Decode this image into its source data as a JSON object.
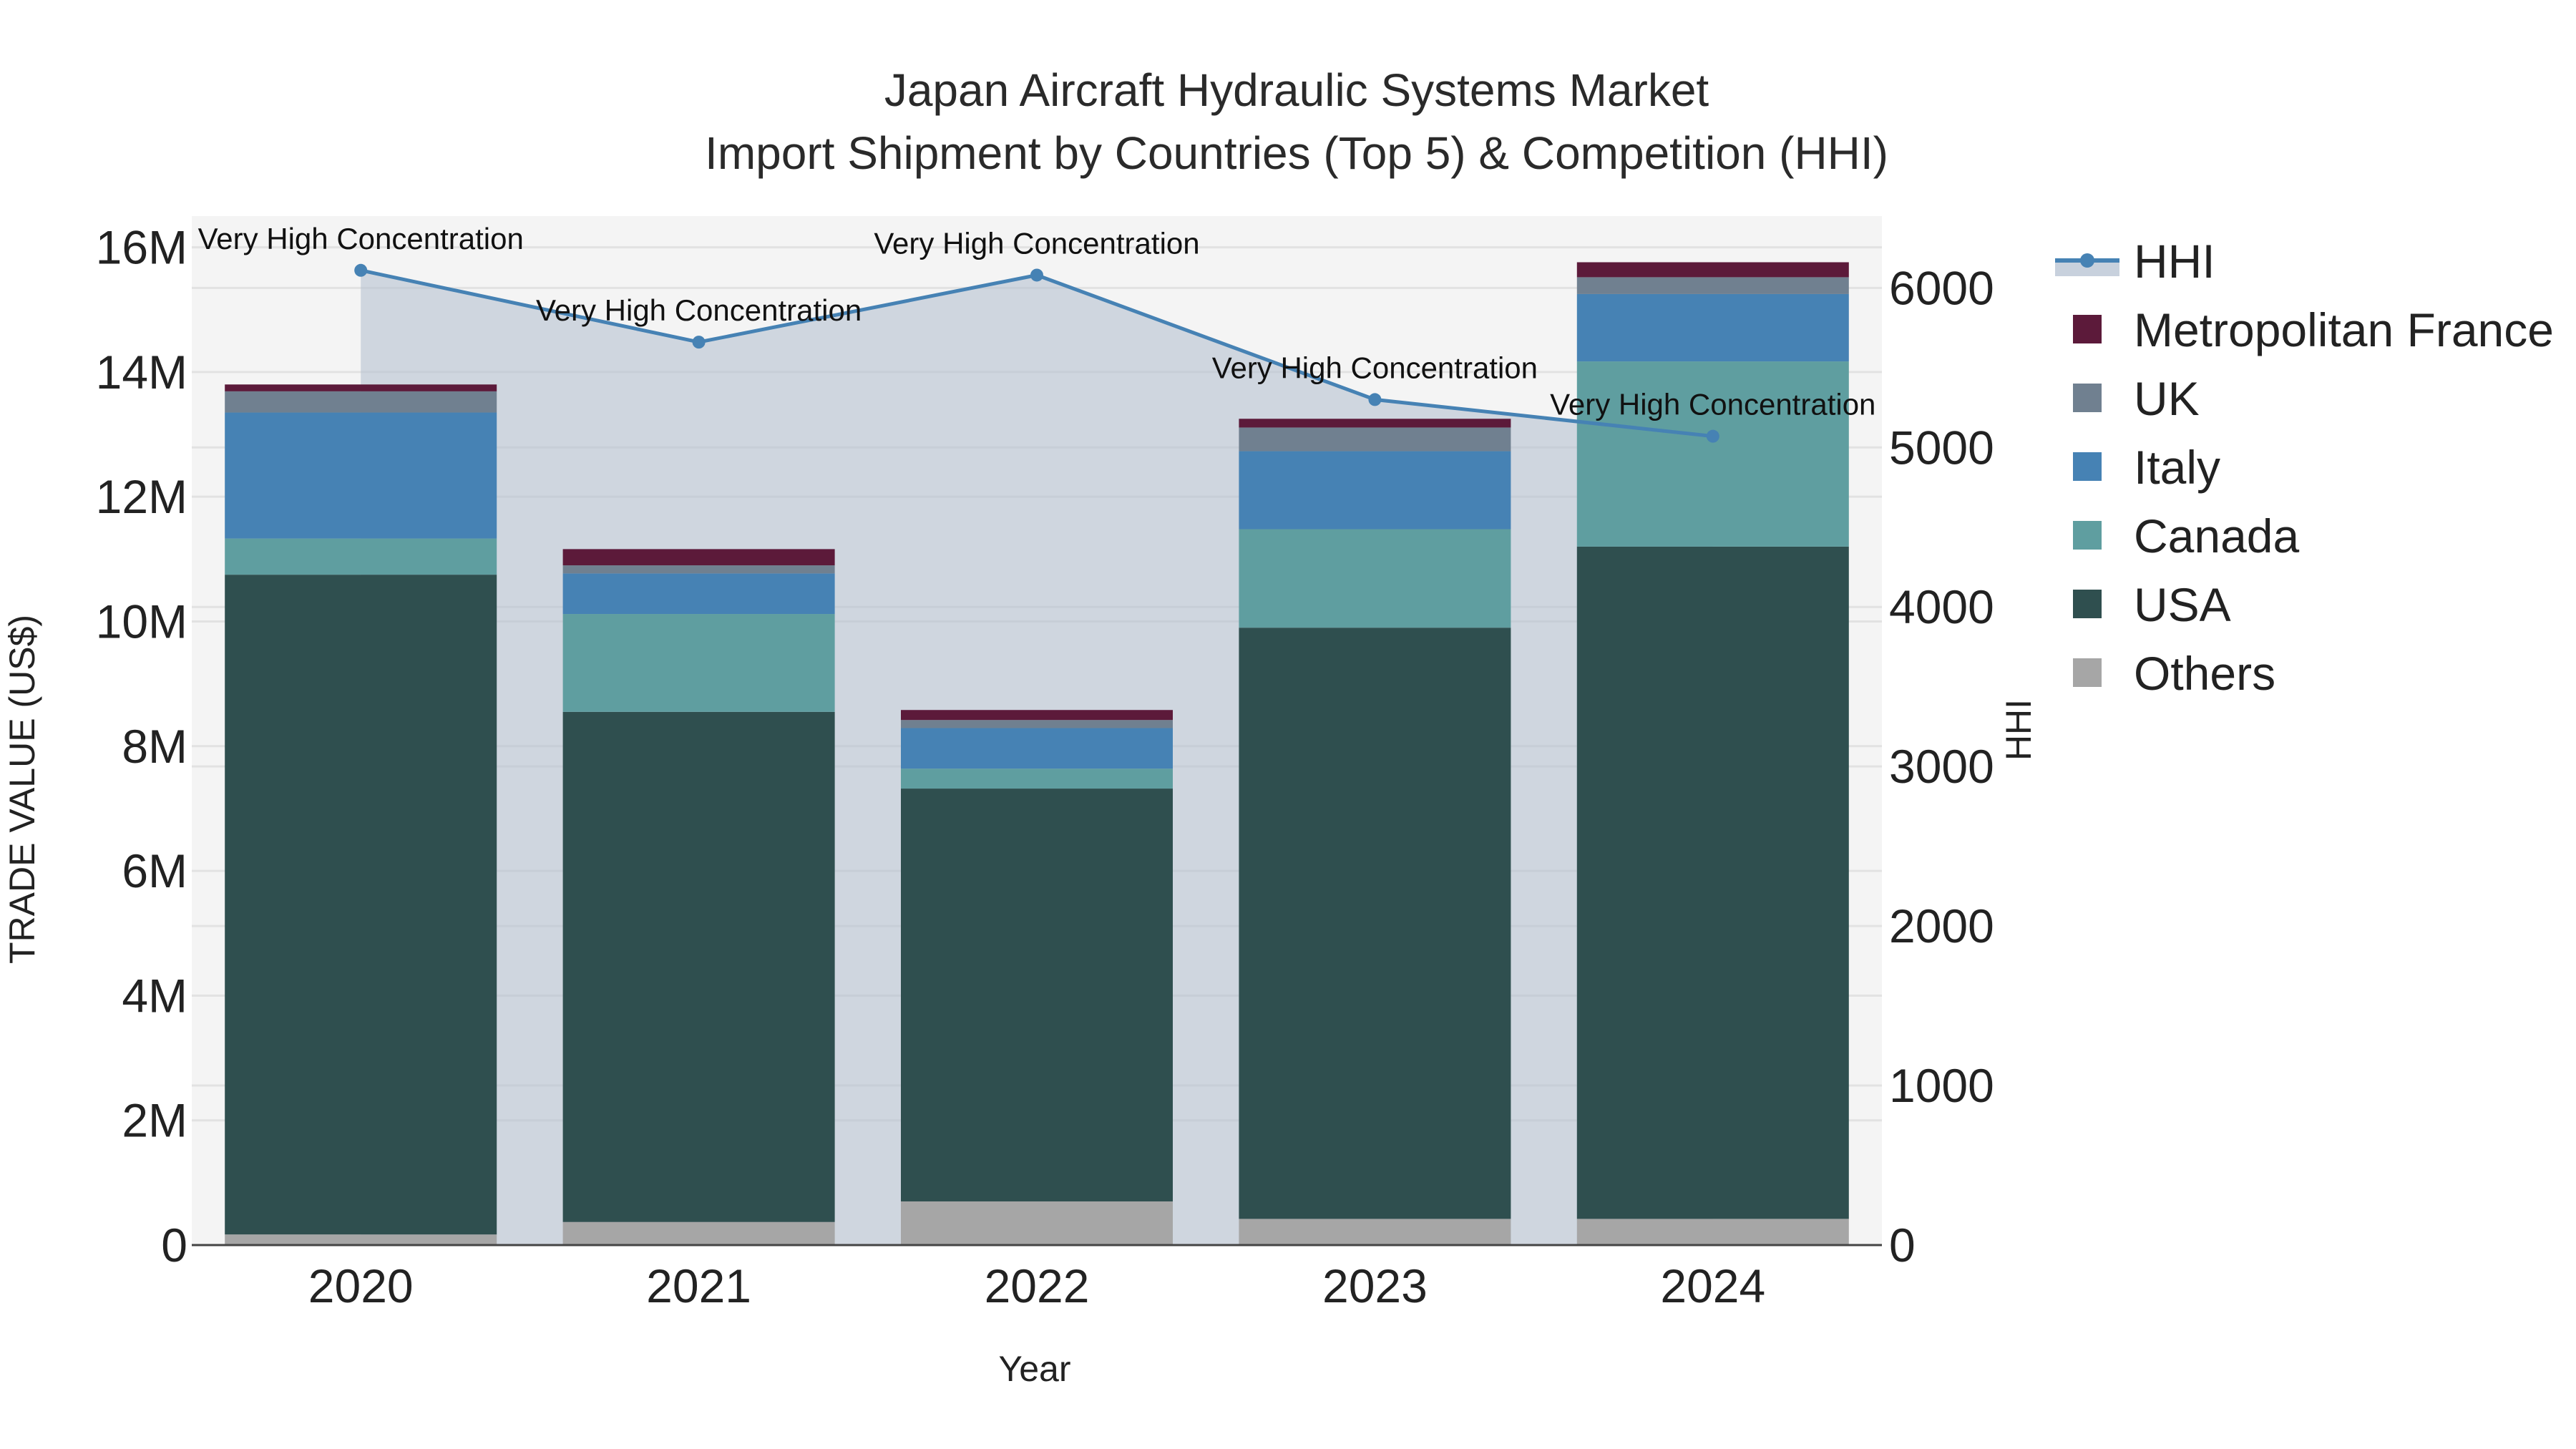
{
  "chart_data": {
    "type": "bar",
    "stacked": true,
    "title": "Japan Aircraft Hydraulic Systems Market",
    "subtitle": "Import Shipment by Countries (Top 5) & Competition (HHI)",
    "xlabel": "Year",
    "ylabel": "TRADE VALUE (US$)",
    "y2label": "HHI",
    "categories": [
      "2020",
      "2021",
      "2022",
      "2023",
      "2024"
    ],
    "ylim": [
      0,
      16500000
    ],
    "y2lim": [
      0,
      6450
    ],
    "yticks": [
      0,
      2000000,
      4000000,
      6000000,
      8000000,
      10000000,
      12000000,
      14000000,
      16000000
    ],
    "ytick_labels": [
      "0",
      "2M",
      "4M",
      "6M",
      "8M",
      "10M",
      "12M",
      "14M",
      "16M"
    ],
    "y2ticks": [
      0,
      1000,
      2000,
      3000,
      4000,
      5000,
      6000
    ],
    "y2tick_labels": [
      "0",
      "1000",
      "2000",
      "3000",
      "4000",
      "5000",
      "6000"
    ],
    "legend_position": "right",
    "series": [
      {
        "name": "Others",
        "color": "#a6a6a6",
        "values": [
          170000,
          370000,
          700000,
          420000,
          420000
        ]
      },
      {
        "name": "USA",
        "color": "#2f4f4f",
        "values": [
          10580000,
          8180000,
          6620000,
          9480000,
          10780000
        ]
      },
      {
        "name": "Canada",
        "color": "#5f9ea0",
        "values": [
          580000,
          1570000,
          320000,
          1580000,
          2970000
        ]
      },
      {
        "name": "Italy",
        "color": "#4682b4",
        "values": [
          2020000,
          650000,
          650000,
          1250000,
          1080000
        ]
      },
      {
        "name": "UK",
        "color": "#708090",
        "values": [
          340000,
          130000,
          130000,
          380000,
          270000
        ]
      },
      {
        "name": "Metropolitan France",
        "color": "#5c1a3a",
        "values": [
          110000,
          260000,
          160000,
          140000,
          240000
        ]
      }
    ],
    "hhi": {
      "name": "HHI",
      "color": "#4682b4",
      "values": [
        6110,
        5660,
        6080,
        5300,
        5070
      ],
      "annotations": [
        "Very High Concentration",
        "Very High Concentration",
        "Very High Concentration",
        "Very High Concentration",
        "Very High Concentration"
      ]
    },
    "legend_order": [
      "HHI",
      "Metropolitan France",
      "UK",
      "Italy",
      "Canada",
      "USA",
      "Others"
    ]
  }
}
